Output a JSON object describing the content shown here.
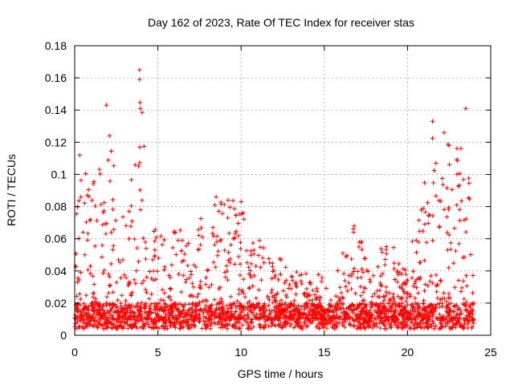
{
  "chart_data": {
    "type": "scatter",
    "title": "Day 162 of 2023, Rate Of TEC Index for receiver stas",
    "xlabel": "GPS time / hours",
    "ylabel": "ROTI / TECUs",
    "xlim": [
      0,
      25
    ],
    "ylim": [
      0,
      0.18
    ],
    "x_ticks": [
      0,
      5,
      10,
      15,
      20,
      25
    ],
    "y_ticks": [
      0,
      0.02,
      0.04,
      0.06,
      0.08,
      0.1,
      0.12,
      0.14,
      0.16,
      0.18
    ],
    "grid": true,
    "marker": "+",
    "color": "#ff0000",
    "series": [
      {
        "name": "ROTI",
        "x_range": [
          0,
          24
        ],
        "baseline_max": 0.02,
        "envelope": [
          {
            "x": 0.0,
            "y": 0.07
          },
          {
            "x": 0.4,
            "y": 0.11
          },
          {
            "x": 1.0,
            "y": 0.09
          },
          {
            "x": 1.9,
            "y": 0.14
          },
          {
            "x": 2.5,
            "y": 0.1
          },
          {
            "x": 3.2,
            "y": 0.07
          },
          {
            "x": 3.9,
            "y": 0.165
          },
          {
            "x": 4.5,
            "y": 0.07
          },
          {
            "x": 5.5,
            "y": 0.06
          },
          {
            "x": 6.5,
            "y": 0.07
          },
          {
            "x": 8.5,
            "y": 0.085
          },
          {
            "x": 10.0,
            "y": 0.083
          },
          {
            "x": 11.0,
            "y": 0.06
          },
          {
            "x": 12.5,
            "y": 0.05
          },
          {
            "x": 14.0,
            "y": 0.04
          },
          {
            "x": 15.5,
            "y": 0.037
          },
          {
            "x": 16.8,
            "y": 0.068
          },
          {
            "x": 18.0,
            "y": 0.05
          },
          {
            "x": 18.8,
            "y": 0.06
          },
          {
            "x": 20.0,
            "y": 0.045
          },
          {
            "x": 21.0,
            "y": 0.095
          },
          {
            "x": 21.5,
            "y": 0.13
          },
          {
            "x": 22.5,
            "y": 0.12
          },
          {
            "x": 23.5,
            "y": 0.14
          },
          {
            "x": 24.0,
            "y": 0.055
          }
        ],
        "peaks": [
          {
            "x": 0.3,
            "y": 0.112
          },
          {
            "x": 1.9,
            "y": 0.143
          },
          {
            "x": 3.9,
            "y": 0.165
          },
          {
            "x": 3.9,
            "y": 0.159
          },
          {
            "x": 3.95,
            "y": 0.141
          },
          {
            "x": 8.5,
            "y": 0.086
          },
          {
            "x": 10.0,
            "y": 0.083
          },
          {
            "x": 16.8,
            "y": 0.068
          },
          {
            "x": 21.5,
            "y": 0.133
          },
          {
            "x": 22.2,
            "y": 0.126
          },
          {
            "x": 23.5,
            "y": 0.141
          }
        ]
      }
    ]
  }
}
